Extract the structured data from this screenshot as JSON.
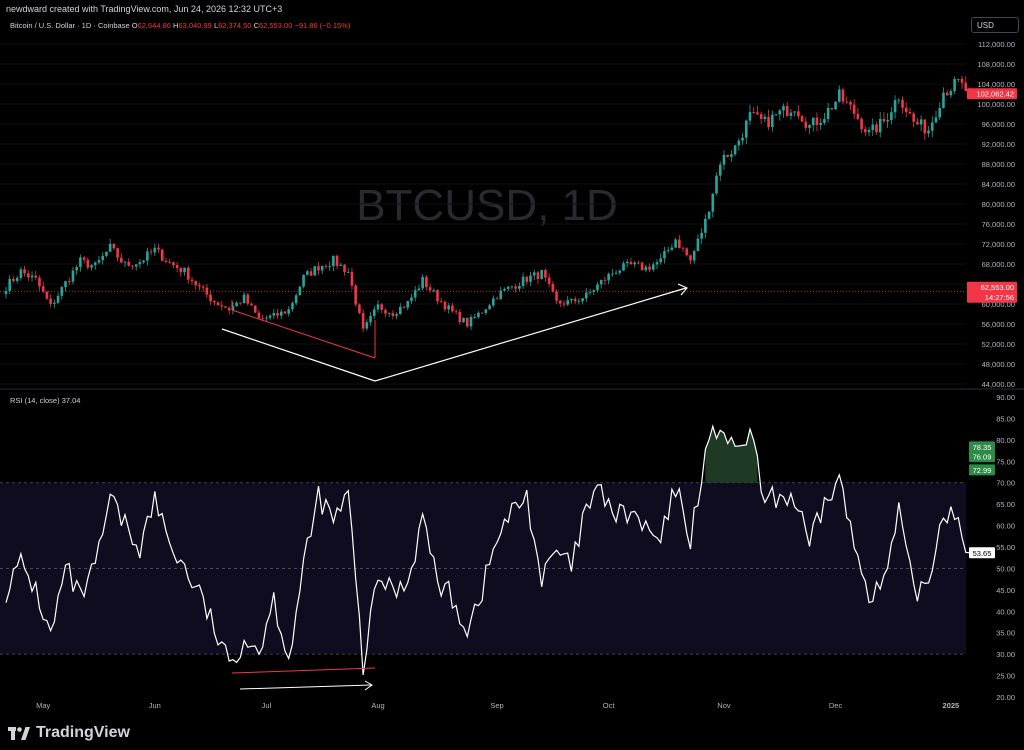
{
  "header": {
    "author_line": "newdward created with TradingView.com, Jun 24, 2026 12:32 UTC+3",
    "symbol": "Bitcoin / U.S. Dollar · 1D · Coinbase",
    "o_label": "O",
    "o_value": "62,644.86",
    "h_label": "H",
    "h_value": "63,040.99",
    "l_label": "L",
    "l_value": "62,374.50",
    "c_label": "C",
    "c_value": "62,553.00 −91.86 (−0.15%)",
    "currency": "USD",
    "rsi_label": "RSI (14, close)",
    "rsi_value": "37.04"
  },
  "watermark": "BTCUSD, 1D",
  "logo_text": "TradingView",
  "colors": {
    "up": "#26a69a",
    "down": "#f23645",
    "rsi": "#ffffff",
    "band": "#0f0c1f",
    "arrow": "#ffffff"
  },
  "chart_data": [
    {
      "type": "candlestick",
      "title": "Bitcoin / U.S. Dollar · 1D · Coinbase",
      "ylim": [
        44000,
        113000
      ],
      "y_ticks": [
        "112,000.00",
        "108,000.00",
        "104,000.00",
        "100,000.00",
        "96,000.00",
        "92,000.00",
        "88,000.00",
        "84,000.00",
        "80,000.00",
        "76,000.00",
        "72,000.00",
        "68,000.00",
        "64,000.00",
        "60,000.00",
        "56,000.00",
        "52,000.00",
        "48,000.00",
        "44,000.00"
      ],
      "y_tick_values": [
        112000,
        108000,
        104000,
        100000,
        96000,
        92000,
        88000,
        84000,
        80000,
        76000,
        72000,
        68000,
        64000,
        60000,
        56000,
        52000,
        48000,
        44000
      ],
      "close_anchors": [
        [
          0,
          63500
        ],
        [
          4,
          66500
        ],
        [
          8,
          64800
        ],
        [
          12,
          59500
        ],
        [
          16,
          64200
        ],
        [
          20,
          68500
        ],
        [
          24,
          67500
        ],
        [
          28,
          71200
        ],
        [
          32,
          67800
        ],
        [
          36,
          68500
        ],
        [
          40,
          70800
        ],
        [
          44,
          68200
        ],
        [
          48,
          66500
        ],
        [
          52,
          63200
        ],
        [
          56,
          60500
        ],
        [
          60,
          59000
        ],
        [
          64,
          61200
        ],
        [
          68,
          57000
        ],
        [
          72,
          57500
        ],
        [
          76,
          58800
        ],
        [
          80,
          65300
        ],
        [
          84,
          67500
        ],
        [
          88,
          68700
        ],
        [
          92,
          66500
        ],
        [
          96,
          54500
        ],
        [
          100,
          59500
        ],
        [
          104,
          58300
        ],
        [
          108,
          60200
        ],
        [
          112,
          64700
        ],
        [
          116,
          61200
        ],
        [
          120,
          58300
        ],
        [
          124,
          56000
        ],
        [
          128,
          58600
        ],
        [
          132,
          61800
        ],
        [
          136,
          63500
        ],
        [
          140,
          65100
        ],
        [
          144,
          66100
        ],
        [
          148,
          60200
        ],
        [
          152,
          60400
        ],
        [
          156,
          61600
        ],
        [
          160,
          64400
        ],
        [
          164,
          66800
        ],
        [
          168,
          67700
        ],
        [
          172,
          67200
        ],
        [
          176,
          68600
        ],
        [
          180,
          73000
        ],
        [
          184,
          68600
        ],
        [
          188,
          76500
        ],
        [
          192,
          88600
        ],
        [
          196,
          91300
        ],
        [
          200,
          97500
        ],
        [
          204,
          96200
        ],
        [
          208,
          98100
        ],
        [
          212,
          99700
        ],
        [
          216,
          95500
        ],
        [
          220,
          97800
        ],
        [
          224,
          101500
        ],
        [
          228,
          98300
        ],
        [
          232,
          94000
        ],
        [
          236,
          96500
        ],
        [
          240,
          101800
        ],
        [
          244,
          96300
        ],
        [
          248,
          94900
        ],
        [
          252,
          102500
        ],
        [
          256,
          104200
        ],
        [
          259,
          102062
        ]
      ],
      "last_price_tags": [
        {
          "label": "102,062.42",
          "value": 102062
        },
        {
          "label": "62,553.00",
          "value": 62553
        },
        {
          "label": "14:27:56",
          "value": 62553
        }
      ],
      "annotations": "red bracket Jun–Aug lows (lower low), white V arrow to Nov breakout"
    },
    {
      "type": "line",
      "title": "RSI (14, close)",
      "ylim": [
        20,
        90
      ],
      "y_ticks": [
        "90.00",
        "85.00",
        "80.00",
        "75.00",
        "70.00",
        "65.00",
        "60.00",
        "55.00",
        "50.00",
        "45.00",
        "40.00",
        "35.00",
        "30.00",
        "25.00",
        "20.00"
      ],
      "y_tick_values": [
        90,
        85,
        80,
        75,
        70,
        65,
        60,
        55,
        50,
        45,
        40,
        35,
        30,
        25,
        20
      ],
      "bands": [
        30,
        50,
        70
      ],
      "anchors": [
        [
          0,
          45
        ],
        [
          4,
          51
        ],
        [
          8,
          45
        ],
        [
          12,
          34
        ],
        [
          16,
          50
        ],
        [
          20,
          43
        ],
        [
          24,
          50
        ],
        [
          28,
          66
        ],
        [
          32,
          60
        ],
        [
          36,
          55
        ],
        [
          40,
          66
        ],
        [
          44,
          56
        ],
        [
          48,
          50
        ],
        [
          52,
          44
        ],
        [
          56,
          36
        ],
        [
          60,
          27
        ],
        [
          64,
          34
        ],
        [
          68,
          31
        ],
        [
          72,
          43
        ],
        [
          76,
          29
        ],
        [
          80,
          50
        ],
        [
          84,
          67
        ],
        [
          88,
          61
        ],
        [
          92,
          67
        ],
        [
          96,
          27
        ],
        [
          100,
          48
        ],
        [
          104,
          45
        ],
        [
          108,
          47
        ],
        [
          112,
          62
        ],
        [
          116,
          47
        ],
        [
          120,
          43
        ],
        [
          124,
          36
        ],
        [
          128,
          45
        ],
        [
          132,
          57
        ],
        [
          136,
          63
        ],
        [
          140,
          67
        ],
        [
          144,
          47
        ],
        [
          148,
          54
        ],
        [
          152,
          50
        ],
        [
          156,
          64
        ],
        [
          160,
          68
        ],
        [
          164,
          62
        ],
        [
          168,
          63
        ],
        [
          172,
          59
        ],
        [
          176,
          56
        ],
        [
          180,
          69
        ],
        [
          184,
          57
        ],
        [
          188,
          77
        ],
        [
          192,
          84
        ],
        [
          196,
          76
        ],
        [
          200,
          82
        ],
        [
          204,
          65
        ],
        [
          208,
          67
        ],
        [
          212,
          66
        ],
        [
          216,
          55
        ],
        [
          220,
          65
        ],
        [
          224,
          71
        ],
        [
          228,
          55
        ],
        [
          232,
          45
        ],
        [
          236,
          46
        ],
        [
          240,
          63
        ],
        [
          244,
          44
        ],
        [
          248,
          47
        ],
        [
          252,
          64
        ],
        [
          256,
          62
        ],
        [
          259,
          53.65
        ]
      ],
      "last_value_tags": [
        {
          "label": "78.35",
          "value": 78.35,
          "color": "#1f7a3a"
        },
        {
          "label": "76.09",
          "value": 76.09,
          "color": "#1f7a3a"
        },
        {
          "label": "72.99",
          "value": 72.99,
          "color": "#1f7a3a"
        },
        {
          "label": "53.65",
          "value": 53.65,
          "color": "#ffffff"
        }
      ]
    }
  ],
  "x_ticks": [
    "May",
    "Jun",
    "Jul",
    "Aug",
    "Sep",
    "Oct",
    "Nov",
    "Dec",
    "2025"
  ],
  "x_tick_index": [
    10,
    40,
    70,
    100,
    132,
    162,
    193,
    223,
    254
  ]
}
